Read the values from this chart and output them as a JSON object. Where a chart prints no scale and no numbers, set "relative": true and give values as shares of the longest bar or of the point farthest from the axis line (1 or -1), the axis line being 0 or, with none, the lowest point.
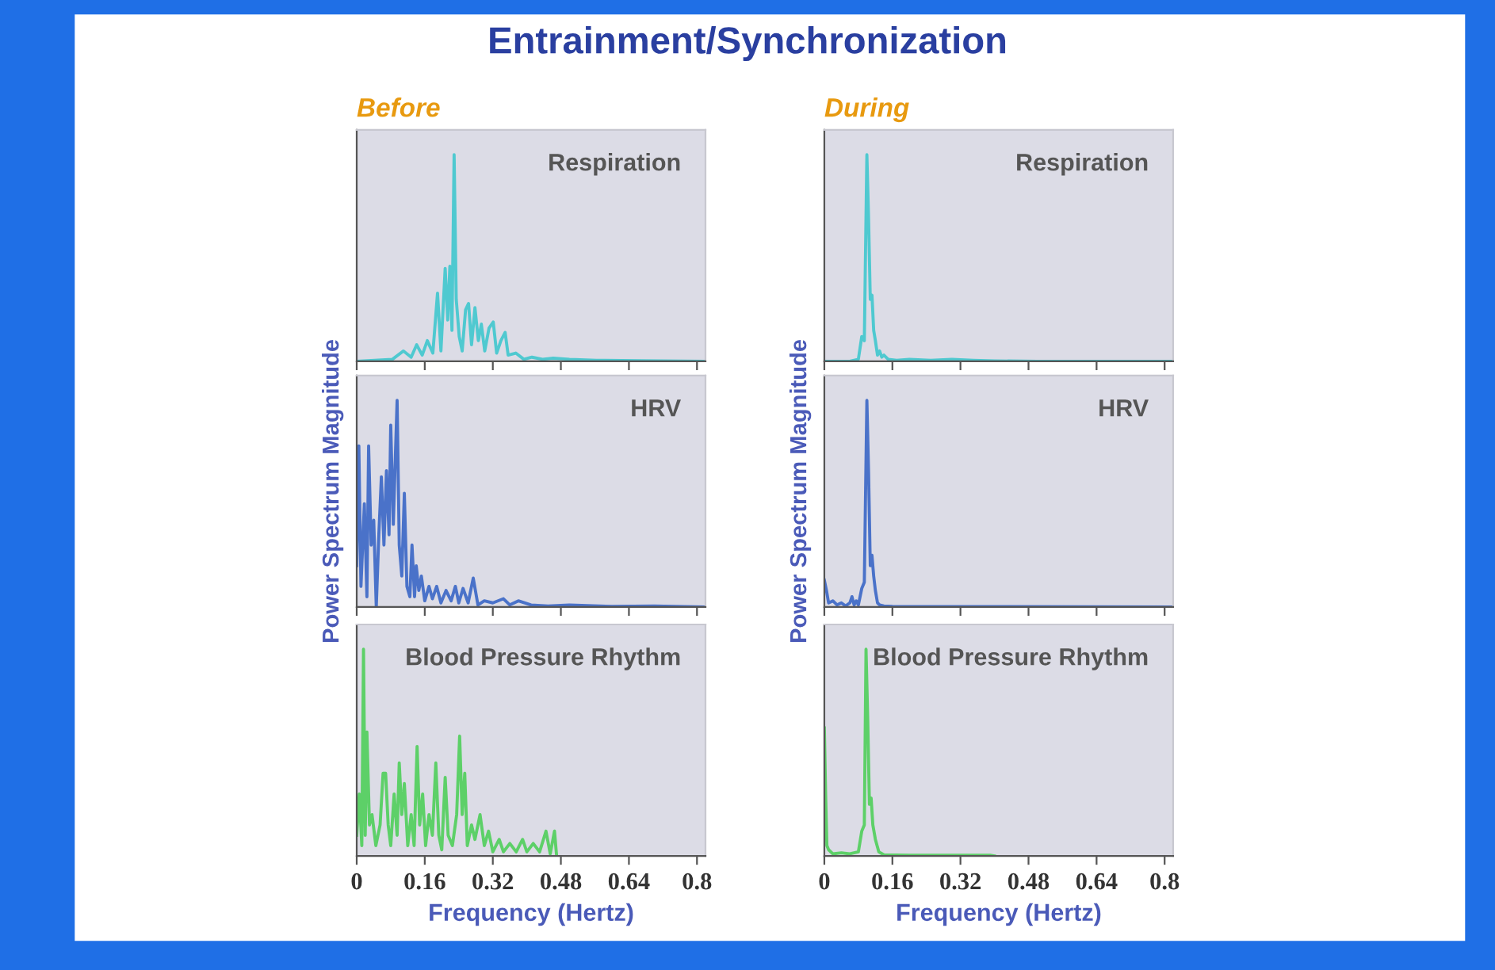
{
  "chart_data": [
    {
      "type": "line",
      "title": "Entrainment/Synchronization",
      "subtitle": "Before",
      "annotations": [
        "Respiration"
      ],
      "relative": true,
      "xlim": [
        0,
        0.82
      ],
      "xticks": [
        0,
        0.16,
        0.32,
        0.48,
        0.64,
        0.8
      ],
      "tick_labels": false,
      "grid": false,
      "legend": false,
      "series": [
        {
          "color": "#4fc9d0",
          "x": [
            0,
            0.084,
            0.11,
            0.128,
            0.141,
            0.154,
            0.166,
            0.179,
            0.19,
            0.198,
            0.208,
            0.214,
            0.219,
            0.224,
            0.229,
            0.234,
            0.241,
            0.248,
            0.256,
            0.263,
            0.27,
            0.278,
            0.286,
            0.293,
            0.301,
            0.311,
            0.321,
            0.329,
            0.339,
            0.349,
            0.356,
            0.374,
            0.393,
            0.412,
            0.437,
            0.462,
            0.5,
            0.563,
            0.664,
            0.815
          ],
          "values": [
            0,
            0.01,
            0.05,
            0.02,
            0.08,
            0.03,
            0.1,
            0.04,
            0.33,
            0.05,
            0.45,
            0.2,
            0.46,
            0.15,
            1,
            0.3,
            0.12,
            0.05,
            0.25,
            0.28,
            0.08,
            0.26,
            0.1,
            0.18,
            0.05,
            0.16,
            0.19,
            0.04,
            0.1,
            0.14,
            0.03,
            0.04,
            0.01,
            0.02,
            0.01,
            0.015,
            0.01,
            0.005,
            0.003,
            0
          ]
        }
      ]
    },
    {
      "type": "line",
      "subtitle": "During",
      "annotations": [
        "Respiration"
      ],
      "relative": true,
      "xlim": [
        0,
        0.82
      ],
      "xticks": [
        0,
        0.16,
        0.32,
        0.48,
        0.64,
        0.8
      ],
      "tick_labels": false,
      "grid": false,
      "legend": false,
      "series": [
        {
          "color": "#4fc9d0",
          "x": [
            0,
            0.06,
            0.08,
            0.088,
            0.094,
            0.1,
            0.104,
            0.108,
            0.112,
            0.116,
            0.12,
            0.125,
            0.13,
            0.135,
            0.14,
            0.15,
            0.17,
            0.2,
            0.25,
            0.3,
            0.35,
            0.4,
            0.5,
            0.815
          ],
          "values": [
            0,
            0,
            0.01,
            0.12,
            0.1,
            1,
            0.69,
            0.3,
            0.32,
            0.15,
            0.1,
            0.03,
            0.05,
            0.02,
            0.03,
            0.01,
            0.005,
            0.01,
            0.005,
            0.01,
            0.005,
            0.002,
            0,
            0
          ]
        }
      ]
    },
    {
      "type": "line",
      "ylabel": "Power Spectrum Magnitude",
      "annotations": [
        "HRV"
      ],
      "relative": true,
      "xlim": [
        0,
        0.82
      ],
      "xticks": [
        0,
        0.16,
        0.32,
        0.48,
        0.64,
        0.8
      ],
      "tick_labels": false,
      "grid": false,
      "legend": false,
      "series": [
        {
          "color": "#4a72c9",
          "x": [
            0,
            0.005,
            0.01,
            0.018,
            0.024,
            0.028,
            0.034,
            0.04,
            0.046,
            0.052,
            0.058,
            0.064,
            0.07,
            0.076,
            0.08,
            0.086,
            0.095,
            0.1,
            0.106,
            0.112,
            0.118,
            0.125,
            0.13,
            0.136,
            0.14,
            0.146,
            0.152,
            0.16,
            0.17,
            0.178,
            0.188,
            0.198,
            0.21,
            0.222,
            0.232,
            0.24,
            0.25,
            0.262,
            0.274,
            0.285,
            0.3,
            0.32,
            0.345,
            0.36,
            0.38,
            0.41,
            0.45,
            0.5,
            0.6,
            0.7,
            0.815
          ],
          "values": [
            0.2,
            0.78,
            0.1,
            0.5,
            0.05,
            0.78,
            0.3,
            0.42,
            0,
            0.35,
            0.63,
            0.3,
            0.66,
            0.35,
            0.88,
            0.4,
            1,
            0.3,
            0.15,
            0.55,
            0.1,
            0.05,
            0.3,
            0.05,
            0.2,
            0.08,
            0.15,
            0.03,
            0.1,
            0.04,
            0.1,
            0.02,
            0.08,
            0.03,
            0.1,
            0.02,
            0.09,
            0.02,
            0.14,
            0.01,
            0.03,
            0.02,
            0.04,
            0.01,
            0.03,
            0.01,
            0.005,
            0.01,
            0.003,
            0.005,
            0
          ]
        }
      ]
    },
    {
      "type": "line",
      "ylabel": "Power Spectrum Magnitude",
      "annotations": [
        "HRV"
      ],
      "relative": true,
      "xlim": [
        0,
        0.82
      ],
      "xticks": [
        0,
        0.16,
        0.32,
        0.48,
        0.64,
        0.8
      ],
      "tick_labels": false,
      "grid": false,
      "legend": false,
      "series": [
        {
          "color": "#4a72c9",
          "x": [
            0,
            0.005,
            0.01,
            0.02,
            0.03,
            0.04,
            0.05,
            0.06,
            0.065,
            0.07,
            0.075,
            0.08,
            0.088,
            0.094,
            0.1,
            0.104,
            0.108,
            0.112,
            0.116,
            0.12,
            0.125,
            0.13,
            0.14,
            0.16,
            0.815
          ],
          "values": [
            0.13,
            0.08,
            0.02,
            0.03,
            0.01,
            0.02,
            0.005,
            0.02,
            0.05,
            0.01,
            0.03,
            0.01,
            0.09,
            0.12,
            1,
            0.65,
            0.2,
            0.25,
            0.15,
            0.08,
            0.02,
            0.01,
            0.005,
            0.003,
            0
          ]
        }
      ]
    },
    {
      "type": "line",
      "xlabel": "Frequency (Hertz)",
      "annotations": [
        "Blood Pressure Rhythm"
      ],
      "relative": true,
      "xlim": [
        0,
        0.82
      ],
      "xticks": [
        0,
        0.16,
        0.32,
        0.48,
        0.64,
        0.8
      ],
      "tick_labels": "x",
      "grid": false,
      "legend": false,
      "series": [
        {
          "color": "#5dd068",
          "x": [
            0,
            0.006,
            0.012,
            0.016,
            0.02,
            0.024,
            0.03,
            0.036,
            0.045,
            0.055,
            0.062,
            0.068,
            0.074,
            0.08,
            0.088,
            0.095,
            0.1,
            0.106,
            0.112,
            0.12,
            0.128,
            0.135,
            0.142,
            0.148,
            0.155,
            0.162,
            0.17,
            0.178,
            0.186,
            0.193,
            0.2,
            0.208,
            0.215,
            0.225,
            0.235,
            0.242,
            0.248,
            0.254,
            0.26,
            0.27,
            0.278,
            0.29,
            0.3,
            0.31,
            0.32,
            0.335,
            0.345,
            0.36,
            0.375,
            0.39,
            0.4,
            0.415,
            0.43,
            0.445,
            0.455,
            0.465,
            0.47
          ],
          "values": [
            0.1,
            0.3,
            0.05,
            1,
            0.1,
            0.6,
            0.15,
            0.2,
            0.05,
            0.15,
            0.4,
            0.4,
            0.15,
            0.05,
            0.3,
            0.1,
            0.45,
            0.2,
            0.35,
            0.05,
            0.2,
            0.05,
            0.53,
            0.15,
            0.3,
            0.05,
            0.2,
            0.1,
            0.45,
            0.1,
            0.03,
            0.38,
            0.1,
            0.05,
            0.2,
            0.58,
            0.2,
            0.4,
            0.05,
            0.15,
            0.08,
            0.2,
            0.05,
            0.12,
            0.02,
            0.08,
            0.02,
            0.06,
            0.02,
            0.08,
            0.02,
            0.06,
            0.02,
            0.12,
            0.01,
            0.12,
            0
          ]
        }
      ]
    },
    {
      "type": "line",
      "xlabel": "Frequency (Hertz)",
      "annotations": [
        "Blood Pressure Rhythm"
      ],
      "relative": true,
      "xlim": [
        0,
        0.82
      ],
      "xticks": [
        0,
        0.16,
        0.32,
        0.48,
        0.64,
        0.8
      ],
      "tick_labels": "x",
      "grid": false,
      "legend": false,
      "series": [
        {
          "color": "#5dd068",
          "x": [
            0,
            0.003,
            0.006,
            0.01,
            0.02,
            0.04,
            0.06,
            0.08,
            0.088,
            0.094,
            0.098,
            0.102,
            0.106,
            0.11,
            0.114,
            0.12,
            0.128,
            0.14,
            0.2,
            0.3,
            0.39,
            0.4
          ],
          "values": [
            0.62,
            0.3,
            0.05,
            0.03,
            0.01,
            0.015,
            0.01,
            0.02,
            0.12,
            0.15,
            1,
            0.66,
            0.25,
            0.28,
            0.15,
            0.08,
            0.02,
            0.005,
            0.003,
            0.003,
            0.003,
            0
          ]
        }
      ]
    }
  ]
}
